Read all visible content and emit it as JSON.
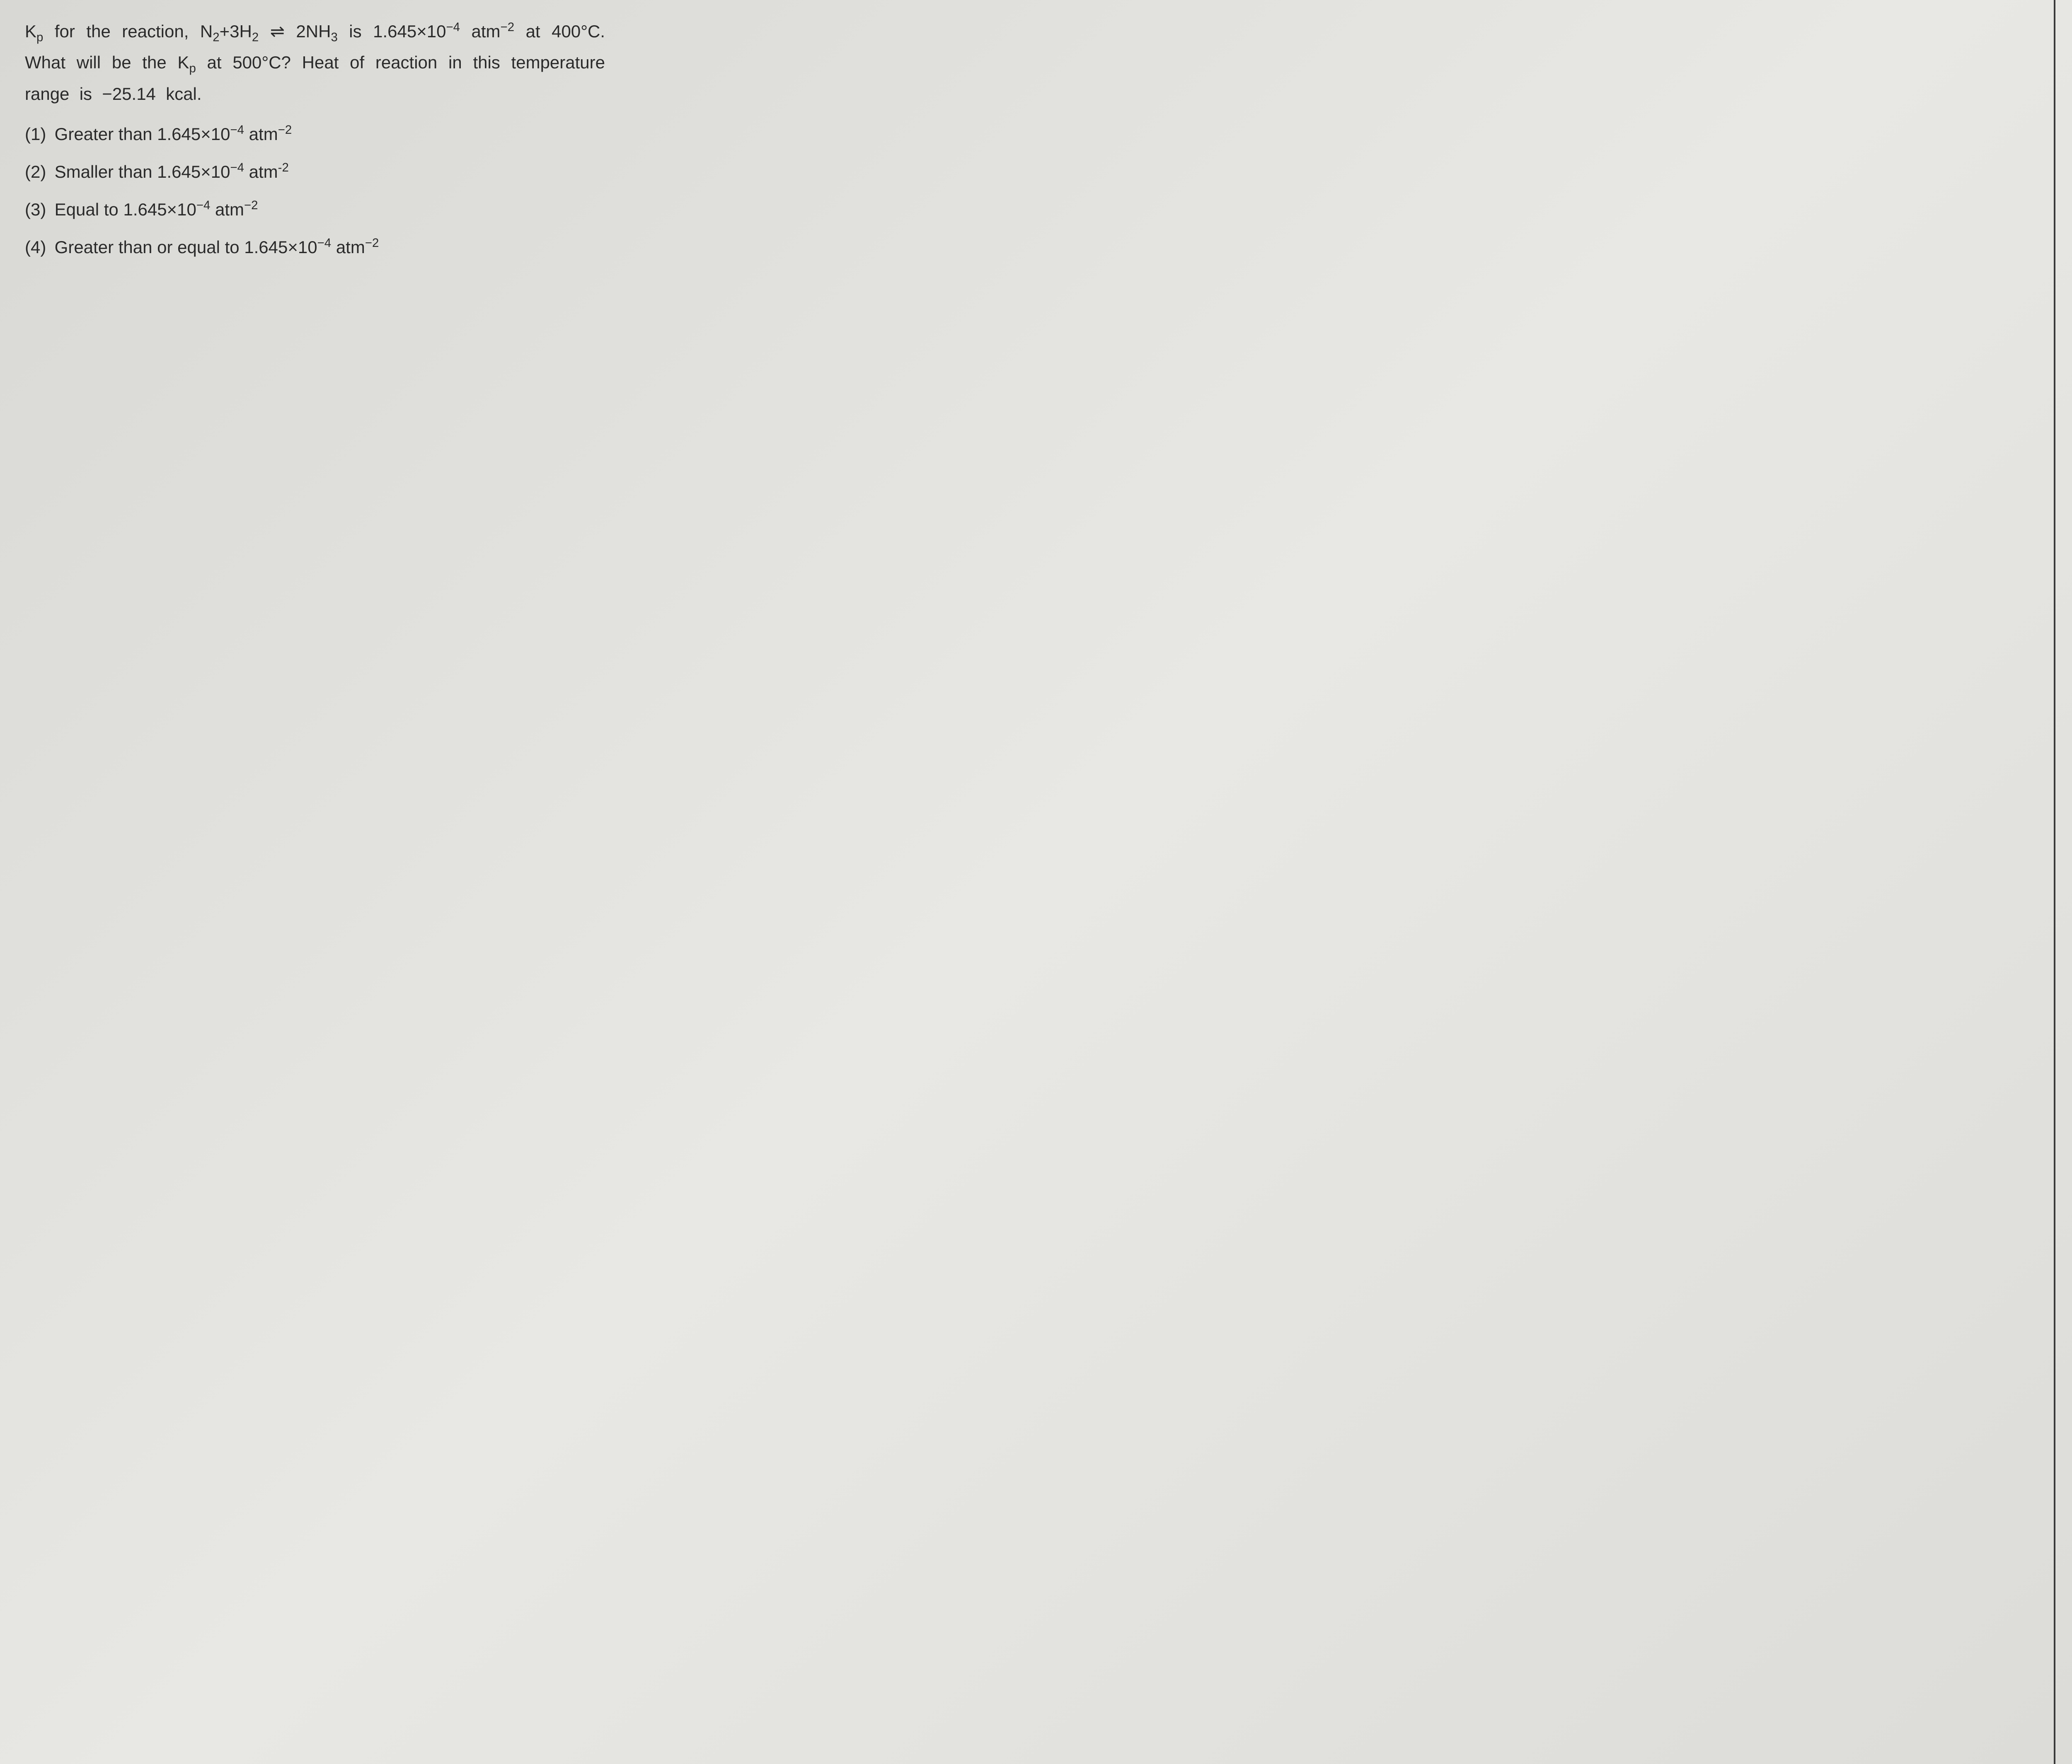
{
  "question": {
    "prefix": "K",
    "sub1": "p",
    "part1": " for the reaction, N",
    "sub2": "2",
    "part2": "+3H",
    "sub3": "2",
    "eq_symbol": " ⇌ ",
    "part3": "2NH",
    "sub4": "3",
    "part4": " is 1.645×10",
    "sup1": "−4",
    "part5": " atm",
    "sup2": "−2",
    "part6": " at 400°C. What will be the K",
    "sub5": "p",
    "part7": " at 500°C? Heat of reaction in this temperature range is −25.14 kcal."
  },
  "options": {
    "o1": {
      "num": "(1)",
      "pre": "Greater than 1.645×10",
      "sup1": "−4",
      "mid": " atm",
      "sup2": "−2"
    },
    "o2": {
      "num": "(2)",
      "pre": "Smaller than 1.645×10",
      "sup1": "−4",
      "mid": " atm",
      "sup2": "-2"
    },
    "o3": {
      "num": "(3)",
      "pre": "Equal to 1.645×10",
      "sup1": "−4",
      "mid": " atm",
      "sup2": "−2"
    },
    "o4": {
      "num": "(4)",
      "pre": "Greater than or equal to 1.645×10",
      "sup1": "−4",
      "mid": " atm",
      "sup2": "−2"
    }
  },
  "styling": {
    "background_color": "#e0e0dc",
    "text_color": "#2a2a2a",
    "font_size_pt": 42,
    "line_height": 1.7,
    "font_family": "Arial"
  }
}
